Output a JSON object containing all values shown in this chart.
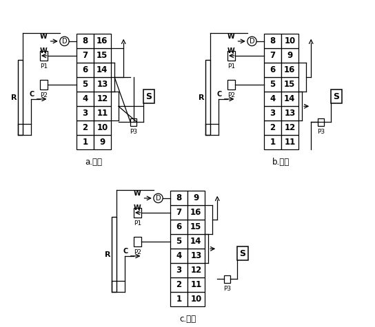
{
  "diagrams": [
    {
      "label": "a.注油",
      "left_col": [
        8,
        7,
        6,
        5,
        4,
        3,
        2,
        1
      ],
      "right_col": [
        16,
        15,
        14,
        13,
        12,
        11,
        10,
        9
      ],
      "type": "a"
    },
    {
      "label": "b.进样",
      "left_col": [
        8,
        7,
        6,
        5,
        4,
        3,
        2,
        1
      ],
      "right_col": [
        10,
        9,
        16,
        15,
        14,
        13,
        12,
        11
      ],
      "type": "b"
    },
    {
      "label": "c.检测",
      "left_col": [
        8,
        7,
        6,
        5,
        4,
        3,
        2,
        1
      ],
      "right_col": [
        9,
        16,
        15,
        14,
        13,
        12,
        11,
        10
      ],
      "type": "c"
    }
  ]
}
